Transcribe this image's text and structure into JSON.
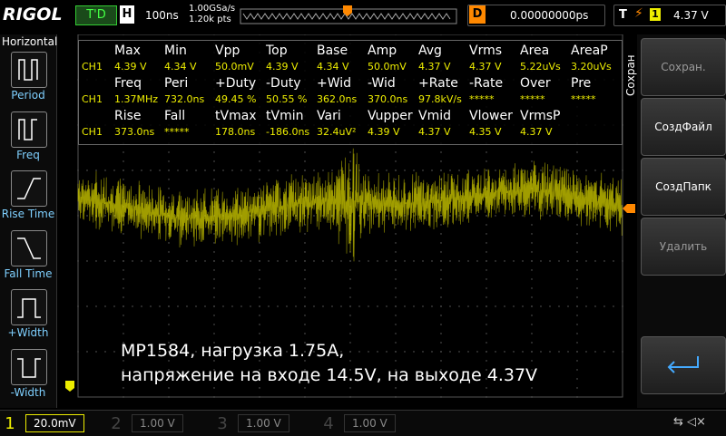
{
  "header": {
    "brand": "RIGOL",
    "status": "T'D",
    "timebase_label": "H",
    "timebase": "100ns",
    "sample_rate": "1.00GSa/s",
    "points": "1.20k pts",
    "trigger_pos_label": "D",
    "trigger_pos": "0.00000000ps",
    "trigger_label": "T",
    "trigger_source": "1",
    "trigger_level": "4.37 V"
  },
  "left_menu": {
    "title": "Horizontal",
    "items": [
      "Period",
      "Freq",
      "Rise Time",
      "Fall Time",
      "+Width",
      "-Width"
    ]
  },
  "measurements": {
    "rows": [
      {
        "channel": "CH1",
        "headers": [
          "Max",
          "Min",
          "Vpp",
          "Top",
          "Base",
          "Amp",
          "Avg",
          "Vrms",
          "Area",
          "AreaP"
        ],
        "values": [
          "4.39 V",
          "4.34 V",
          "50.0mV",
          "4.39 V",
          "4.34 V",
          "50.0mV",
          "4.37 V",
          "4.37 V",
          "5.22uVs",
          "3.20uVs"
        ]
      },
      {
        "channel": "CH1",
        "headers": [
          "Freq",
          "Peri",
          "+Duty",
          "-Duty",
          "+Wid",
          "-Wid",
          "+Rate",
          "-Rate",
          "Over",
          "Pre"
        ],
        "values": [
          "1.37MHz",
          "732.0ns",
          "49.45 %",
          "50.55 %",
          "362.0ns",
          "370.0ns",
          "97.8kV/s",
          "*****",
          "*****",
          "*****"
        ]
      },
      {
        "channel": "CH1",
        "headers": [
          "Rise",
          "Fall",
          "tVmax",
          "tVmin",
          "Vari",
          "Vupper",
          "Vmid",
          "Vlower",
          "VrmsP"
        ],
        "values": [
          "373.0ns",
          "*****",
          "178.0ns",
          "-186.0ns",
          "32.4uV²",
          "4.39 V",
          "4.37 V",
          "4.35 V",
          "4.37 V"
        ]
      }
    ]
  },
  "right_menu": {
    "title": "Сохран",
    "buttons": [
      "Сохран.",
      "СоздФайл",
      "СоздПапк",
      "Удалить"
    ]
  },
  "annotation": {
    "lines": [
      "MP1584, нагрузка 1.75A,",
      "напряжение на входе 14.5V, на выходе 4.37V"
    ]
  },
  "channels": [
    {
      "number": "1",
      "scale": "20.0mV"
    },
    {
      "number": "2",
      "scale": "1.00 V"
    },
    {
      "number": "3",
      "scale": "1.00 V"
    },
    {
      "number": "4",
      "scale": "1.00 V"
    }
  ]
}
